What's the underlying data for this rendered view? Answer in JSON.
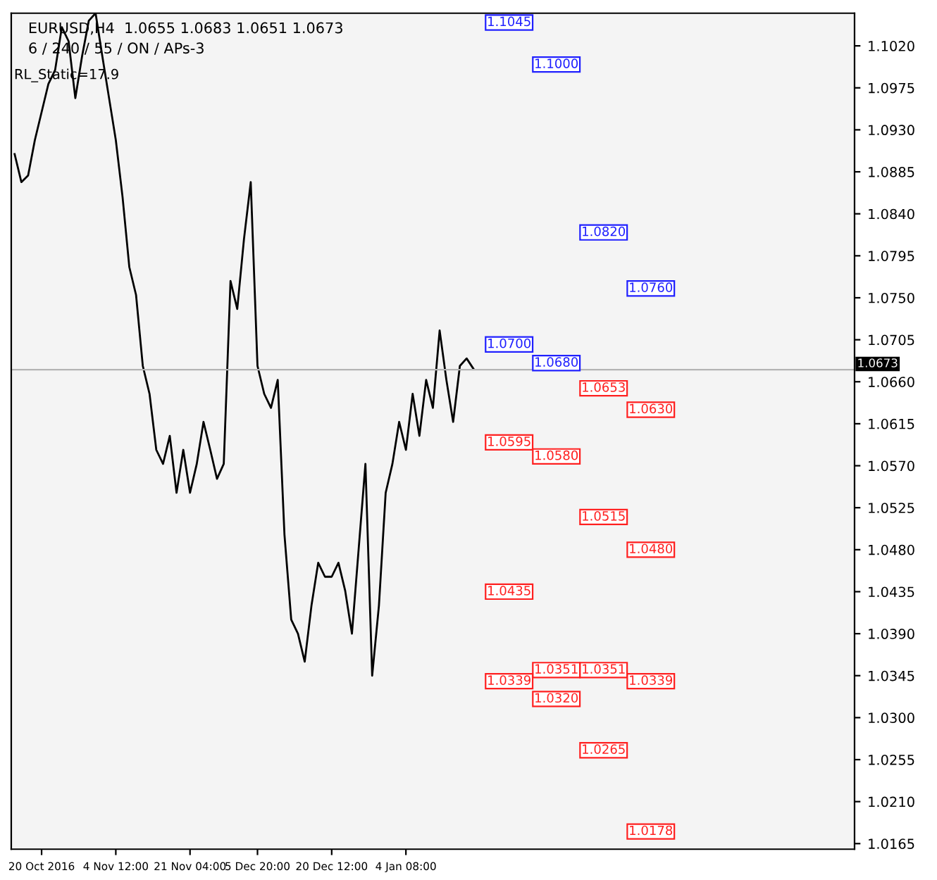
{
  "chart_data": {
    "type": "line",
    "title": "EURUSD,H4  1.0655 1.0683 1.0651 1.0673",
    "subtitle": "6 / 240 / 55 / ON / APs-3",
    "categories": [
      null,
      null,
      null,
      null,
      "20 Oct 2016",
      null,
      null,
      null,
      null,
      null,
      null,
      null,
      null,
      null,
      null,
      "4 Nov 12:00",
      null,
      null,
      null,
      null,
      null,
      null,
      null,
      null,
      null,
      null,
      "21 Nov 04:00",
      null,
      null,
      null,
      null,
      null,
      null,
      null,
      null,
      null,
      "5 Dec 20:00",
      null,
      null,
      null,
      null,
      null,
      null,
      null,
      null,
      null,
      null,
      "20 Dec 12:00",
      null,
      null,
      null,
      null,
      null,
      null,
      null,
      null,
      null,
      null,
      "4 Jan 08:00",
      null,
      null,
      null,
      null,
      null,
      null,
      null,
      null,
      null,
      null,
      null,
      null,
      null,
      null,
      null,
      null,
      null,
      null,
      null,
      null,
      null,
      null,
      null,
      null,
      null,
      null,
      null,
      null,
      null,
      null,
      null,
      null,
      null,
      null,
      null,
      null,
      null,
      null,
      null,
      null,
      null,
      null,
      null,
      null,
      null,
      null,
      null,
      null,
      null,
      null,
      null,
      null,
      null,
      null,
      null,
      null,
      null,
      null,
      null,
      null,
      null,
      null,
      null,
      null,
      null,
      null
    ],
    "series": [
      {
        "color": "#000000",
        "values": [
          1.0904,
          1.0874,
          1.0881,
          1.0919,
          1.0949,
          1.0979,
          1.0994,
          1.104,
          1.1025,
          1.0964,
          1.1009,
          1.1047,
          1.1055,
          1.1009,
          1.0964,
          1.0919,
          1.0858,
          1.0783,
          1.0753,
          1.0677,
          1.0647,
          1.0587,
          1.0572,
          1.0602,
          1.0541,
          1.0587,
          1.0541,
          1.0572,
          1.0617,
          1.0587,
          1.0556,
          1.0572,
          1.0768,
          1.0738,
          1.0813,
          1.0874,
          1.0677,
          1.0647,
          1.0632,
          1.0662,
          1.0496,
          1.0405,
          1.039,
          1.036,
          1.042,
          1.0466,
          1.0451,
          1.0451,
          1.0466,
          1.0436,
          1.039,
          1.0481,
          1.0572,
          1.0345,
          1.042,
          1.0541,
          1.0572,
          1.0617,
          1.0587,
          1.0647,
          1.0602,
          1.0662,
          1.0632,
          1.0715,
          1.0662,
          1.0617,
          1.0677,
          1.0685,
          1.0674,
          null,
          null,
          null,
          null,
          null,
          null,
          null,
          null,
          null,
          null,
          null,
          null,
          null,
          null,
          null,
          null,
          null,
          null,
          null,
          null,
          null,
          null,
          null,
          null,
          null,
          null,
          null,
          null,
          null,
          null,
          null,
          null,
          null,
          null,
          null,
          null,
          null,
          null,
          null,
          null,
          null,
          null,
          null,
          null,
          null,
          null,
          null,
          null,
          null,
          null,
          null,
          null,
          null,
          null,
          null,
          null
        ]
      }
    ],
    "ylim": [
      1.0159,
      1.1055
    ],
    "yticks": [
      {
        "value": 1.0165,
        "label": "1.0165"
      },
      {
        "value": 1.021,
        "label": "1.0210"
      },
      {
        "value": 1.0255,
        "label": "1.0255"
      },
      {
        "value": 1.03,
        "label": "1.0300"
      },
      {
        "value": 1.0345,
        "label": "1.0345"
      },
      {
        "value": 1.039,
        "label": "1.0390"
      },
      {
        "value": 1.0435,
        "label": "1.0435"
      },
      {
        "value": 1.048,
        "label": "1.0480"
      },
      {
        "value": 1.0525,
        "label": "1.0525"
      },
      {
        "value": 1.057,
        "label": "1.0570"
      },
      {
        "value": 1.0615,
        "label": "1.0615"
      },
      {
        "value": 1.066,
        "label": "1.0660"
      },
      {
        "value": 1.0705,
        "label": "1.0705"
      },
      {
        "value": 1.075,
        "label": "1.0750"
      },
      {
        "value": 1.0795,
        "label": "1.0795"
      },
      {
        "value": 1.084,
        "label": "1.0840"
      },
      {
        "value": 1.0885,
        "label": "1.0885"
      },
      {
        "value": 1.093,
        "label": "1.0930"
      },
      {
        "value": 1.0975,
        "label": "1.0975"
      },
      {
        "value": 1.102,
        "label": "1.1020"
      }
    ],
    "ref_lines": [
      {
        "axis": "y",
        "value": 1.0673,
        "label": "1.0673",
        "color": "#b4b4b4"
      }
    ],
    "grid": false,
    "legend": false,
    "marker": "none",
    "line_style": "solid",
    "annotations": [
      {
        "text": "1.1045",
        "y": 1.1045
      },
      {
        "text": "1.1000",
        "y": 1.1
      },
      {
        "text": "1.0820",
        "y": 1.082
      },
      {
        "text": "1.0760",
        "y": 1.076
      },
      {
        "text": "1.0700",
        "y": 1.07
      },
      {
        "text": "1.0680",
        "y": 1.068
      },
      {
        "text": "1.0653",
        "y": 1.0653
      },
      {
        "text": "1.0630",
        "y": 1.063
      },
      {
        "text": "1.0595",
        "y": 1.0595
      },
      {
        "text": "1.0580",
        "y": 1.058
      },
      {
        "text": "1.0515",
        "y": 1.0515
      },
      {
        "text": "1.0480",
        "y": 1.048
      },
      {
        "text": "1.0435",
        "y": 1.0435
      },
      {
        "text": "1.0351",
        "y": 1.0351
      },
      {
        "text": "1.0351",
        "y": 1.0351
      },
      {
        "text": "1.0339",
        "y": 1.0339
      },
      {
        "text": "1.0339",
        "y": 1.0339
      },
      {
        "text": "1.0320",
        "y": 1.032
      },
      {
        "text": "1.0265",
        "y": 1.0265
      },
      {
        "text": "1.0178",
        "y": 1.0178
      },
      "RL_Static=17.9"
    ]
  }
}
